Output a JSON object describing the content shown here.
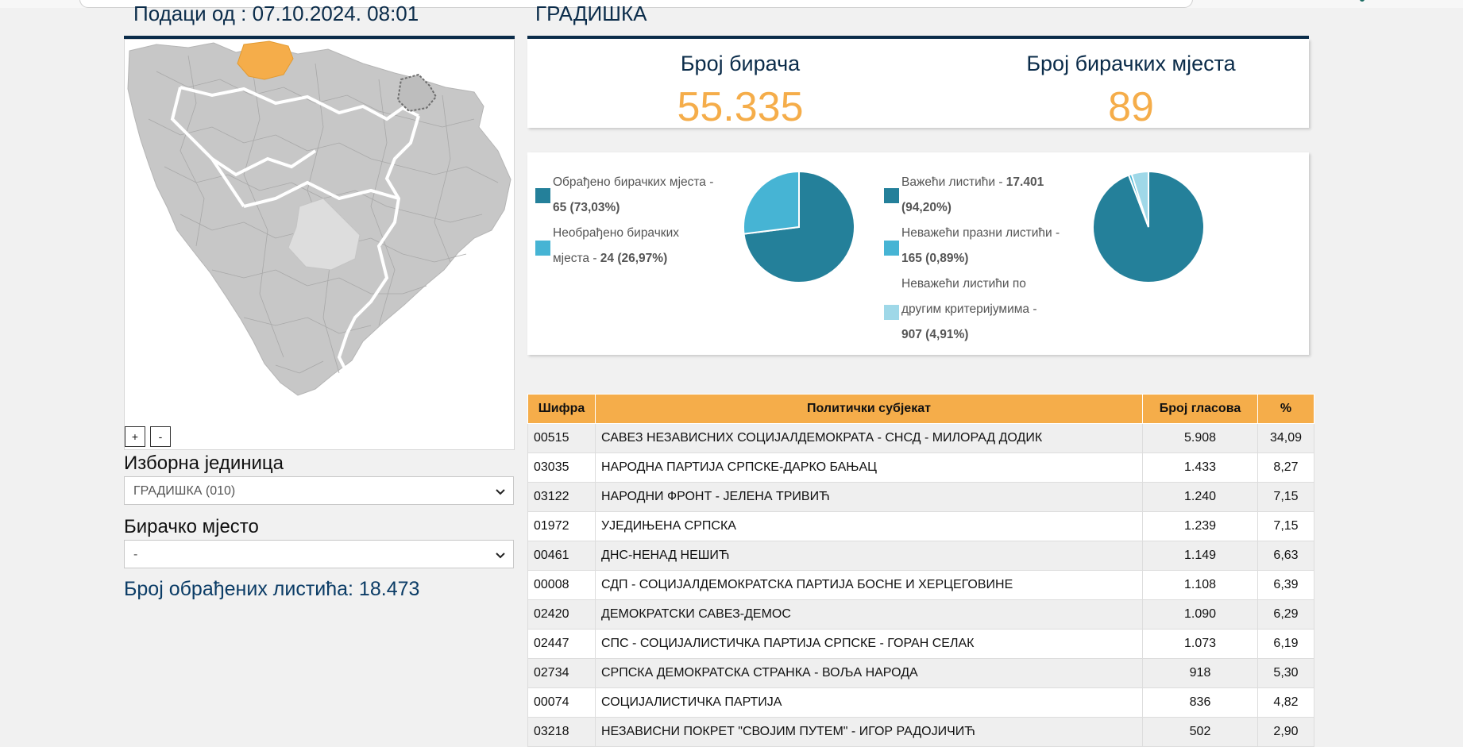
{
  "header": {
    "data_from": "Подаци од : 07.10.2024. 08:01",
    "municipality": "ГРАДИШКА"
  },
  "map": {
    "zoom_in": "+",
    "zoom_out": "-"
  },
  "filters": {
    "unit_label": "Изборна јединица",
    "unit_value": "ГРАДИШКА (010)",
    "station_label": "Бирачко мјесто",
    "station_value": "-"
  },
  "processed_ballots": "Број обрађених листића: 18.473",
  "stats": {
    "voters_label": "Број бирача",
    "voters_value": "55.335",
    "stations_label": "Број бирачких мјеста",
    "stations_value": "89"
  },
  "charts": {
    "stations": {
      "processed_text": "Обрађено бирачких мјеста - ",
      "processed_value": "65 (73,03%)",
      "unprocessed_text": "Необрађено бирачких мјеста - ",
      "unprocessed_value": "24 (26,97%)"
    },
    "ballots": {
      "valid_text": "Важећи листићи - ",
      "valid_value": "17.401 (94,20%)",
      "blank_text": "Неважећи празни листићи - ",
      "blank_value": "165 (0,89%)",
      "other_text": "Неважећи листићи по другим критеријумима - ",
      "other_value": "907 (4,91%)"
    }
  },
  "chart_data": [
    {
      "type": "pie",
      "labels": [
        "Обрађено бирачких мјеста",
        "Необрађено бирачких мјеста"
      ],
      "values": [
        65,
        24
      ],
      "colors": [
        "#24809a",
        "#46b4d4"
      ]
    },
    {
      "type": "pie",
      "labels": [
        "Важећи листићи",
        "Неважећи празни листићи",
        "Неважећи листићи по другим критеријумима"
      ],
      "values": [
        17401,
        165,
        907
      ],
      "colors": [
        "#24809a",
        "#46b4d4",
        "#9fd8e8"
      ]
    }
  ],
  "colors": {
    "accent": "#f5ad4a",
    "navy": "#0b2c4a",
    "teal": "#24809a",
    "light_teal": "#46b4d4",
    "pale_teal": "#9fd8e8"
  },
  "table": {
    "headers": [
      "Шифра",
      "Политички субјекат",
      "Број гласова",
      "%"
    ],
    "rows": [
      [
        "00515",
        "САВЕЗ НЕЗАВИСНИХ СОЦИЈАЛДЕМОКРАТА - СНСД - МИЛОРАД ДОДИК",
        "5.908",
        "34,09"
      ],
      [
        "03035",
        "НАРОДНА ПАРТИЈА СРПСКЕ-ДАРКО БАЊАЦ",
        "1.433",
        "8,27"
      ],
      [
        "03122",
        "НАРОДНИ ФРОНТ - ЈЕЛЕНА ТРИВИЋ",
        "1.240",
        "7,15"
      ],
      [
        "01972",
        "УЈЕДИЊЕНА СРПСКА",
        "1.239",
        "7,15"
      ],
      [
        "00461",
        "ДНС-НЕНАД НЕШИЋ",
        "1.149",
        "6,63"
      ],
      [
        "00008",
        "СДП - СОЦИЈАЛДЕМОКРАТСКА ПАРТИЈА БОСНЕ И ХЕРЦЕГОВИНЕ",
        "1.108",
        "6,39"
      ],
      [
        "02420",
        "ДЕМОКРАТСКИ САВЕЗ-ДЕМОС",
        "1.090",
        "6,29"
      ],
      [
        "02447",
        "СПС - СОЦИЈАЛИСТИЧКА ПАРТИЈА СРПСКЕ - ГОРАН СЕЛАК",
        "1.073",
        "6,19"
      ],
      [
        "02734",
        "СРПСКА ДЕМОКРАТСКА СТРАНКА - ВОЉА НАРОДА",
        "918",
        "5,30"
      ],
      [
        "00074",
        "СОЦИЈАЛИСТИЧКА ПАРТИЈА",
        "836",
        "4,82"
      ],
      [
        "03218",
        "НЕЗАВИСНИ ПОКРЕТ \"СВОЈИМ ПУТЕМ\" - ИГОР РАДОЈИЧИЋ",
        "502",
        "2,90"
      ]
    ]
  }
}
